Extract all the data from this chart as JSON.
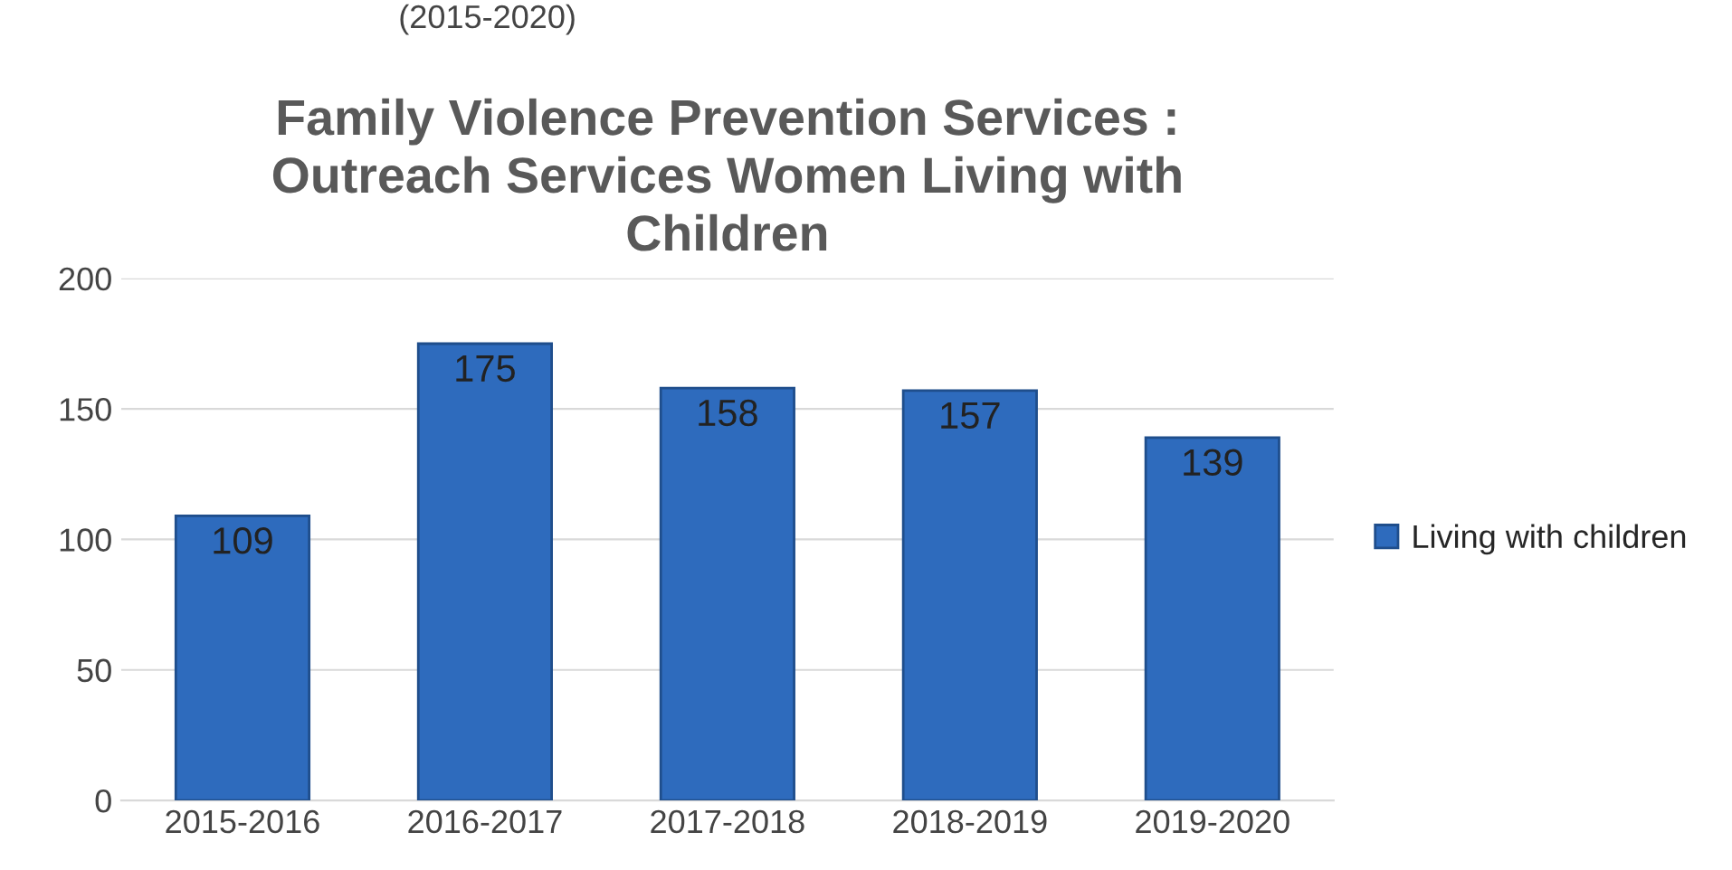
{
  "chart_data": {
    "type": "bar",
    "title": "Family Violence Prevention Services :\nOutreach Services Women Living with\nChildren",
    "subtitle": "(2015-2020)",
    "categories": [
      "2015-2016",
      "2016-2017",
      "2017-2018",
      "2018-2019",
      "2019-2020"
    ],
    "series": [
      {
        "name": "Living with children",
        "color": "#2e6bbd",
        "values": [
          109,
          175,
          158,
          157,
          139
        ]
      }
    ],
    "ylim": [
      0,
      200
    ],
    "yticks": [
      0,
      50,
      100,
      150,
      200
    ],
    "grid": "y",
    "legend": "right",
    "data_labels": true
  }
}
